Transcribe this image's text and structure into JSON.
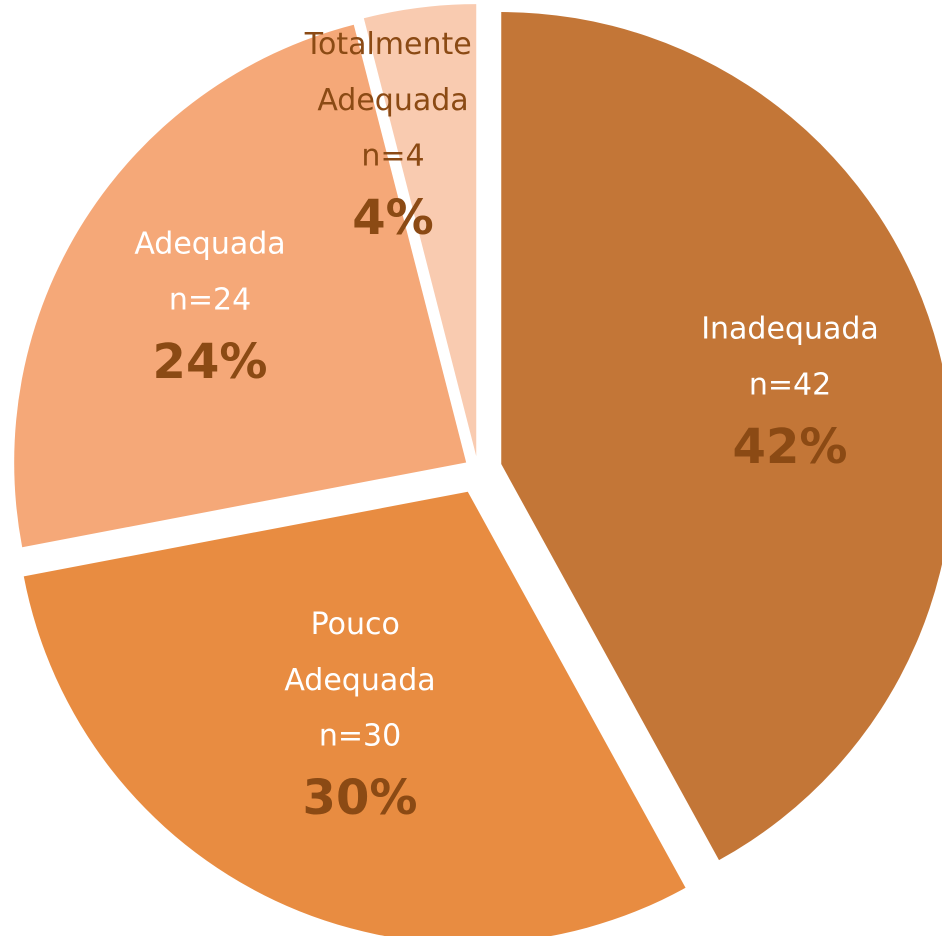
{
  "chart_data": {
    "type": "pie",
    "categories": [
      "Inadequada",
      "Pouco Adequada",
      "Adequada",
      "Totalmente Adequada"
    ],
    "values": [
      42,
      30,
      24,
      4
    ],
    "value_labels": [
      "42%",
      "30%",
      "24%",
      "4%"
    ],
    "count_labels": [
      "n=42",
      "n=30",
      "n=24",
      "n=4"
    ],
    "colors": [
      "#c37637",
      "#e88c41",
      "#f5a878",
      "#f9cbb0"
    ],
    "label_colors": [
      "#ffffff",
      "#ffffff",
      "#ffffff",
      "#8b4a14"
    ],
    "value_label_color": "#8b4a14"
  }
}
